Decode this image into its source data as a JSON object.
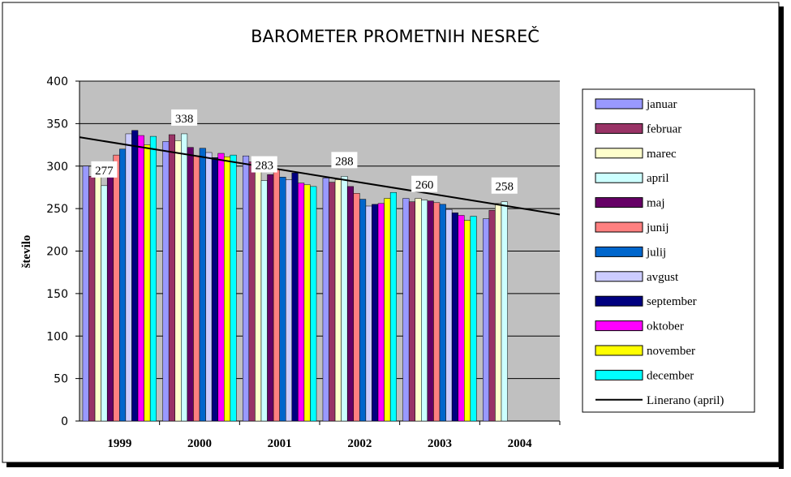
{
  "chart_data": {
    "type": "bar",
    "title": "BAROMETER PROMETNIH NESREČ",
    "y_label": "število",
    "categories": [
      "1999",
      "2000",
      "2001",
      "2002",
      "2003",
      "2004"
    ],
    "ylim": [
      0,
      400
    ],
    "yticks": [
      0,
      50,
      100,
      150,
      200,
      250,
      300,
      350,
      400
    ],
    "grid": true,
    "series": [
      {
        "name": "januar",
        "color": "#9999ff",
        "values": [
          300,
          329,
          312,
          286,
          262,
          238
        ]
      },
      {
        "name": "februar",
        "color": "#993366",
        "values": [
          288,
          337,
          305,
          281,
          258,
          248
        ]
      },
      {
        "name": "marec",
        "color": "#ffffcc",
        "values": [
          291,
          330,
          293,
          284,
          262,
          256
        ]
      },
      {
        "name": "april",
        "color": "#ccffff",
        "values": [
          277,
          338,
          283,
          288,
          260,
          258
        ],
        "data_labels": true
      },
      {
        "name": "maj",
        "color": "#660066",
        "values": [
          298,
          322,
          290,
          276,
          259,
          null
        ]
      },
      {
        "name": "junij",
        "color": "#ff8080",
        "values": [
          313,
          312,
          296,
          268,
          257,
          null
        ]
      },
      {
        "name": "julij",
        "color": "#0066cc",
        "values": [
          320,
          321,
          287,
          261,
          255,
          null
        ]
      },
      {
        "name": "avgust",
        "color": "#ccccff",
        "values": [
          338,
          316,
          284,
          253,
          249,
          null
        ]
      },
      {
        "name": "september",
        "color": "#000080",
        "values": [
          342,
          310,
          292,
          255,
          245,
          null
        ]
      },
      {
        "name": "oktober",
        "color": "#ff00ff",
        "values": [
          336,
          315,
          280,
          256,
          242,
          null
        ]
      },
      {
        "name": "november",
        "color": "#ffff00",
        "values": [
          325,
          311,
          278,
          262,
          236,
          null
        ]
      },
      {
        "name": "december",
        "color": "#00ffff",
        "values": [
          335,
          313,
          276,
          269,
          241,
          null
        ]
      }
    ],
    "trendline": {
      "name": "Linerano (april)",
      "color": "#000000",
      "values": [
        334,
        243
      ]
    }
  }
}
